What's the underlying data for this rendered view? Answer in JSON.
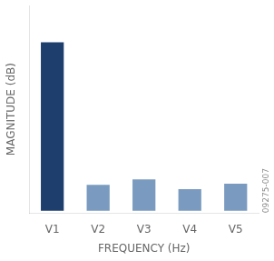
{
  "chart_data": {
    "type": "bar",
    "categories": [
      "V1",
      "V2",
      "V3",
      "V4",
      "V5"
    ],
    "values": [
      0.78,
      0.12,
      0.145,
      0.1,
      0.125
    ],
    "colors": [
      "#1e3f6e",
      "#7a9bbf",
      "#7a9bbf",
      "#7a9bbf",
      "#7a9bbf"
    ],
    "xlabel": "FREQUENCY (Hz)",
    "ylabel": "MAGNITUDE (dB)",
    "annotations": [
      "09275-007"
    ],
    "ylim": [
      -0.01,
      0.95
    ],
    "grid": false,
    "tick_labels": "x"
  }
}
